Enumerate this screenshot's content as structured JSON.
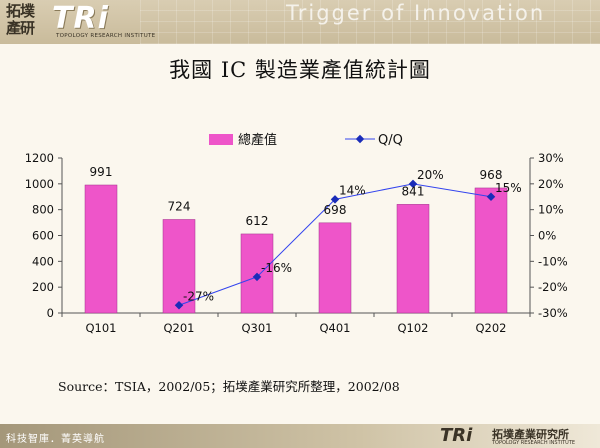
{
  "header": {
    "logo_cn": "拓墣產研",
    "logo_tri": "TRi",
    "logo_sub": "TOPOLOGY RESEARCH INSTITUTE",
    "tagline": "Trigger of Innovation"
  },
  "title": "我國 IC 製造業產值統計圖",
  "source": "Source：TSIA，2002/05；拓墣產業研究所整理，2002/08",
  "footer": {
    "left_text": "科技智庫．菁英導航",
    "tri": "TRi",
    "cn": "拓墣產業研究所",
    "sub": "TOPOLOGY RESEARCH INSTITUTE"
  },
  "colors": {
    "bar": "#ee55c9",
    "bar_stroke": "#a0308a",
    "line": "#3344ee",
    "marker": "#1a2cb8"
  },
  "chart_data": {
    "type": "bar",
    "categories": [
      "Q101",
      "Q201",
      "Q301",
      "Q401",
      "Q102",
      "Q202"
    ],
    "series": [
      {
        "name": "總產值",
        "type": "bar",
        "axis": "left",
        "values": [
          991,
          724,
          612,
          698,
          841,
          968
        ]
      },
      {
        "name": "Q/Q",
        "type": "line",
        "axis": "right",
        "values": [
          null,
          -27,
          -16,
          14,
          20,
          15
        ],
        "labels": [
          "",
          "-27%",
          "-16%",
          "14%",
          "20%",
          "15%"
        ]
      }
    ],
    "y_left": {
      "ylim": [
        0,
        1200
      ],
      "ticks": [
        0,
        200,
        400,
        600,
        800,
        1000,
        1200
      ]
    },
    "y_right": {
      "ylim": [
        -30,
        30
      ],
      "ticks": [
        "-30%",
        "-20%",
        "-10%",
        "0%",
        "10%",
        "20%",
        "30%"
      ],
      "values": [
        -30,
        -20,
        -10,
        0,
        10,
        20,
        30
      ]
    },
    "legend": "top-center",
    "grid": false
  }
}
